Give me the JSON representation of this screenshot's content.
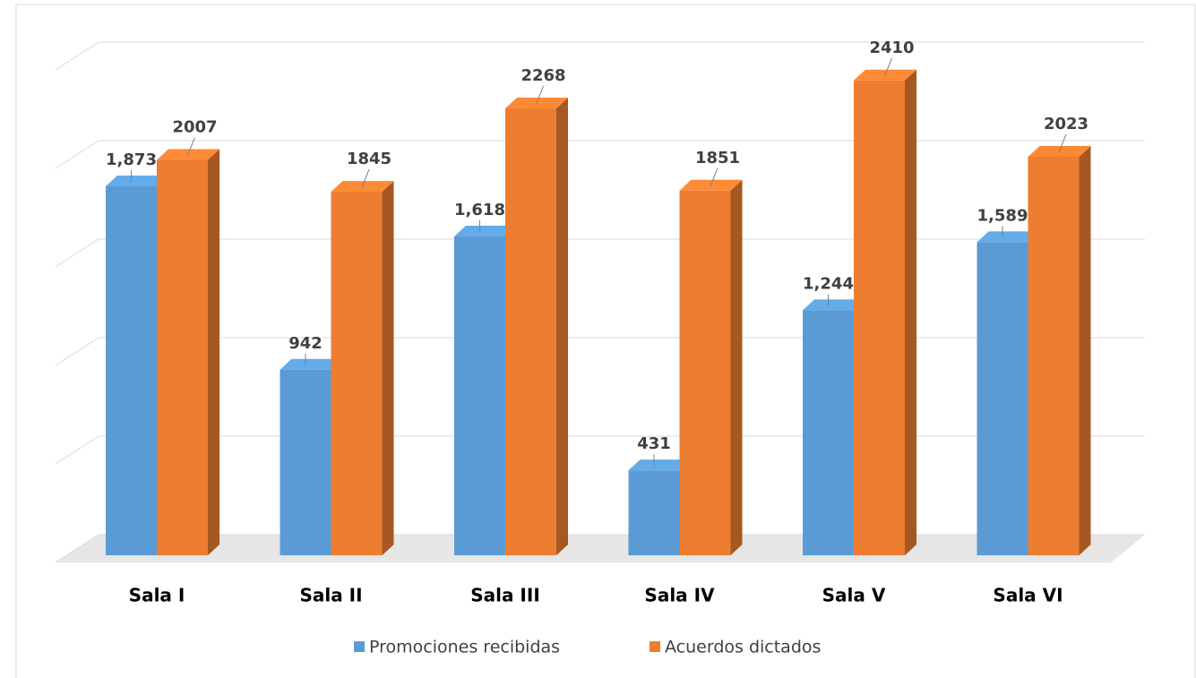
{
  "chart_data": {
    "type": "bar3d",
    "categories": [
      "Sala I",
      "Sala II",
      "Sala III",
      "Sala IV",
      "Sala V",
      "Sala VI"
    ],
    "series": [
      {
        "name": "Promociones recibidas",
        "color": "#5b9bd5",
        "values": [
          1873,
          942,
          1618,
          431,
          1244,
          1589
        ],
        "value_labels": [
          "1,873",
          "942",
          "1,618",
          "431",
          "1,244",
          "1,589"
        ]
      },
      {
        "name": "Acuerdos dictados",
        "color": "#ed7d31",
        "values": [
          2007,
          1845,
          2268,
          1851,
          2410,
          2023
        ]
      }
    ],
    "ylim": [
      0,
      2500
    ],
    "yticks": [
      0,
      500,
      1000,
      1500,
      2000,
      2500
    ],
    "grid": true,
    "legend": "bottom"
  }
}
